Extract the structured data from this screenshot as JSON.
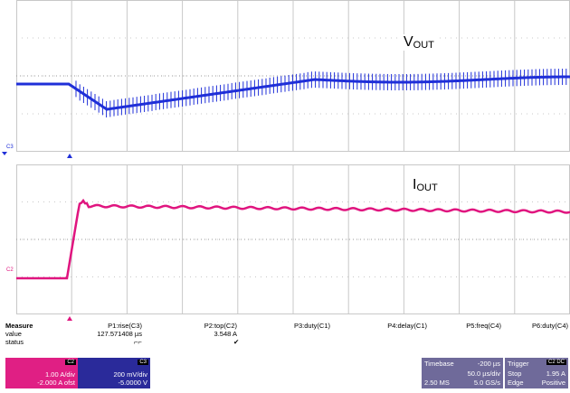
{
  "waveform_labels": {
    "vout_main": "V",
    "vout_sub": "OUT",
    "iout_main": "I",
    "iout_sub": "OUT"
  },
  "channels": {
    "c3": "C3",
    "c2": "C2"
  },
  "measure": {
    "title": "Measure",
    "row_value": "value",
    "row_status": "status",
    "params": [
      {
        "label": "P1:rise(C3)",
        "value": "127.571408 µs",
        "status": "⌐⌐"
      },
      {
        "label": "P2:top(C2)",
        "value": "3.548 A",
        "status": "✔"
      },
      {
        "label": "P3:duty(C1)",
        "value": "",
        "status": ""
      },
      {
        "label": "P4:delay(C1)",
        "value": "",
        "status": ""
      },
      {
        "label": "P5:freq(C4)",
        "value": "",
        "status": ""
      },
      {
        "label": "P6:duty(C4)",
        "value": "",
        "status": ""
      }
    ]
  },
  "c2_panel": {
    "tag": "C2",
    "scale": "1.00 A/div",
    "offset": "-2.000 A ofst"
  },
  "c3_panel": {
    "tag": "C3",
    "scale": "200 mV/div",
    "offset": "-5.0000 V"
  },
  "timebase": {
    "label": "Timebase",
    "delay": "-200 µs",
    "per_div": "50.0 µs/div",
    "samples": "2.50 MS",
    "rate": "5.0 GS/s"
  },
  "trigger": {
    "label": "Trigger",
    "tag": "C2 DC",
    "mode": "Stop",
    "level": "1.95 A",
    "type": "Edge",
    "slope": "Positive"
  },
  "colors": {
    "vout": "#1f2fd8",
    "iout": "#e0157f",
    "grid": "#c8c8c8"
  }
}
